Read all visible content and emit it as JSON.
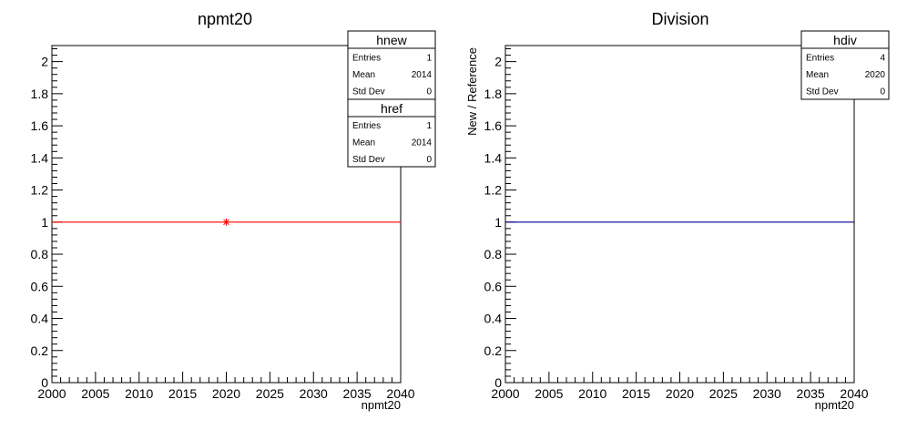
{
  "chart_data": [
    {
      "type": "line",
      "title": "npmt20",
      "xlabel": "npmt20",
      "ylabel": "",
      "xlim": [
        2000,
        2040
      ],
      "ylim": [
        0,
        2.1
      ],
      "x_ticks": [
        "2000",
        "2005",
        "2010",
        "2015",
        "2020",
        "2025",
        "2030",
        "2035",
        "2040"
      ],
      "y_ticks": [
        "0",
        "0.2",
        "0.4",
        "0.6",
        "0.8",
        "1",
        "1.2",
        "1.4",
        "1.6",
        "1.8",
        "2"
      ],
      "series": [
        {
          "name": "",
          "color": "#ff0000",
          "x": [
            2000,
            2040
          ],
          "y": [
            1,
            1
          ]
        }
      ],
      "points": [
        {
          "color": "#ff0000",
          "x": 2020,
          "y": 1
        }
      ],
      "stats": [
        {
          "name": "hnew",
          "rows": [
            {
              "label": "Entries",
              "value": "1"
            },
            {
              "label": "Mean",
              "value": "2014"
            },
            {
              "label": "Std Dev",
              "value": "0"
            }
          ]
        },
        {
          "name": "href",
          "rows": [
            {
              "label": "Entries",
              "value": "1"
            },
            {
              "label": "Mean",
              "value": "2014"
            },
            {
              "label": "Std Dev",
              "value": "0"
            }
          ]
        }
      ]
    },
    {
      "type": "line",
      "title": "Division",
      "xlabel": "npmt20",
      "ylabel": "New / Reference",
      "xlim": [
        2000,
        2040
      ],
      "ylim": [
        0,
        2.1
      ],
      "x_ticks": [
        "2000",
        "2005",
        "2010",
        "2015",
        "2020",
        "2025",
        "2030",
        "2035",
        "2040"
      ],
      "y_ticks": [
        "0",
        "0.2",
        "0.4",
        "0.6",
        "0.8",
        "1",
        "1.2",
        "1.4",
        "1.6",
        "1.8",
        "2"
      ],
      "series": [
        {
          "name": "",
          "color": "#000099",
          "x": [
            2000,
            2040
          ],
          "y": [
            1,
            1
          ]
        }
      ],
      "points": [],
      "stats": [
        {
          "name": "hdiv",
          "rows": [
            {
              "label": "Entries",
              "value": "4"
            },
            {
              "label": "Mean",
              "value": "2020"
            },
            {
              "label": "Std Dev",
              "value": "0"
            }
          ]
        }
      ]
    }
  ]
}
